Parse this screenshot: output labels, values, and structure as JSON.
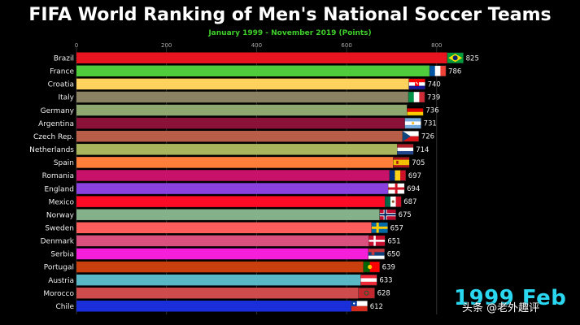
{
  "colors": {
    "background": "#000000",
    "subtitle": "#3ecf2a",
    "date": "#29d8f0"
  },
  "watermark": "头条 @老外趣评",
  "chart_data": {
    "type": "bar",
    "orientation": "horizontal",
    "title": "FIFA World Ranking of Men's National Soccer Teams",
    "subtitle": "January 1999 - November 2019 (Points)",
    "date_label": "1999 Feb",
    "xlim": [
      0,
      830
    ],
    "x_ticks": [
      0,
      200,
      400,
      600,
      800
    ],
    "grid": true,
    "categories": [
      "Brazil",
      "France",
      "Croatia",
      "Italy",
      "Germany",
      "Argentina",
      "Czech Rep.",
      "Netherlands",
      "Spain",
      "Romania",
      "England",
      "Mexico",
      "Norway",
      "Sweden",
      "Denmark",
      "Serbia",
      "Portugal",
      "Austria",
      "Morocco",
      "Chile"
    ],
    "values": [
      825,
      786,
      740,
      739,
      736,
      731,
      726,
      714,
      705,
      697,
      694,
      687,
      675,
      657,
      651,
      650,
      639,
      633,
      628,
      612
    ],
    "bar_colors": [
      "#e8141f",
      "#4fcc3b",
      "#ffd25e",
      "#8a8262",
      "#8fa86f",
      "#8a1238",
      "#b85d48",
      "#a9b55d",
      "#ff7f3a",
      "#c8126a",
      "#8b41e0",
      "#fc0a26",
      "#84b08a",
      "#ff5c5c",
      "#d94f7d",
      "#f51fd9",
      "#c93f0e",
      "#5ab8c6",
      "#cf4c4c",
      "#1a2fd9"
    ],
    "flags": [
      "brazil",
      "france",
      "croatia",
      "italy",
      "germany",
      "argentina",
      "czech",
      "netherlands",
      "spain",
      "romania",
      "england",
      "mexico",
      "norway",
      "sweden",
      "denmark",
      "serbia",
      "portugal",
      "austria",
      "morocco",
      "chile"
    ]
  }
}
